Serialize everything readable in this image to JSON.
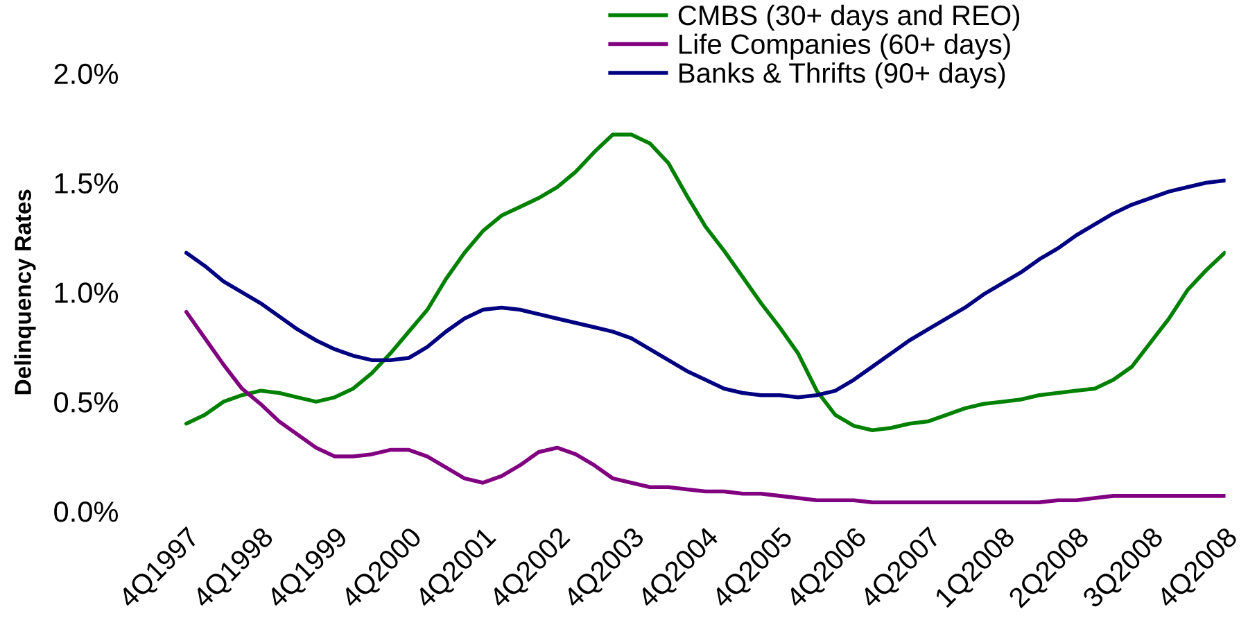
{
  "chart_data": {
    "type": "line",
    "ylabel": "Delinquency Rates",
    "categories": [
      "4Q1997",
      null,
      null,
      null,
      "4Q1998",
      null,
      null,
      null,
      "4Q1999",
      null,
      null,
      null,
      "4Q2000",
      null,
      null,
      null,
      "4Q2001",
      null,
      null,
      null,
      "4Q2002",
      null,
      null,
      null,
      "4Q2003",
      null,
      null,
      null,
      "4Q2004",
      null,
      null,
      null,
      "4Q2005",
      null,
      null,
      null,
      "4Q2006",
      null,
      null,
      null,
      "4Q2007",
      null,
      null,
      null,
      "1Q2008",
      null,
      null,
      null,
      "2Q2008",
      null,
      null,
      null,
      "3Q2008",
      null,
      null,
      null,
      "4Q2008"
    ],
    "series": [
      {
        "name": "CMBS (30+ days and REO)",
        "color": "#008000",
        "values": [
          0.4,
          0.44,
          0.5,
          0.53,
          0.55,
          0.54,
          0.52,
          0.5,
          0.52,
          0.56,
          0.63,
          0.72,
          0.82,
          0.92,
          1.06,
          1.18,
          1.28,
          1.35,
          1.39,
          1.43,
          1.48,
          1.55,
          1.64,
          1.72,
          1.72,
          1.68,
          1.59,
          1.44,
          1.3,
          1.19,
          1.07,
          0.95,
          0.84,
          0.72,
          0.55,
          0.44,
          0.39,
          0.37,
          0.38,
          0.4,
          0.41,
          0.44,
          0.47,
          0.49,
          0.5,
          0.51,
          0.53,
          0.54,
          0.55,
          0.56,
          0.6,
          0.66,
          0.77,
          0.88,
          1.01,
          1.1,
          1.18
        ]
      },
      {
        "name": "Life Companies (60+ days)",
        "color": "#800080",
        "values": [
          0.91,
          0.79,
          0.67,
          0.56,
          0.49,
          0.41,
          0.35,
          0.29,
          0.25,
          0.25,
          0.26,
          0.28,
          0.28,
          0.25,
          0.2,
          0.15,
          0.13,
          0.16,
          0.21,
          0.27,
          0.29,
          0.26,
          0.21,
          0.15,
          0.13,
          0.11,
          0.11,
          0.1,
          0.09,
          0.09,
          0.08,
          0.08,
          0.07,
          0.06,
          0.05,
          0.05,
          0.05,
          0.04,
          0.04,
          0.04,
          0.04,
          0.04,
          0.04,
          0.04,
          0.04,
          0.04,
          0.04,
          0.05,
          0.05,
          0.06,
          0.07,
          0.07,
          0.07,
          0.07,
          0.07,
          0.07,
          0.07
        ]
      },
      {
        "name": "Banks & Thrifts (90+ days)",
        "color": "#000080",
        "values": [
          1.18,
          1.12,
          1.05,
          1.0,
          0.95,
          0.89,
          0.83,
          0.78,
          0.74,
          0.71,
          0.69,
          0.69,
          0.7,
          0.75,
          0.82,
          0.88,
          0.92,
          0.93,
          0.92,
          0.9,
          0.88,
          0.86,
          0.84,
          0.82,
          0.79,
          0.74,
          0.69,
          0.64,
          0.6,
          0.56,
          0.54,
          0.53,
          0.53,
          0.52,
          0.53,
          0.55,
          0.6,
          0.66,
          0.72,
          0.78,
          0.83,
          0.88,
          0.93,
          0.99,
          1.04,
          1.09,
          1.15,
          1.2,
          1.26,
          1.31,
          1.36,
          1.4,
          1.43,
          1.46,
          1.48,
          1.5,
          1.51
        ]
      }
    ],
    "ylim": [
      0,
      2.0
    ],
    "yticks": [
      {
        "value": 0,
        "label": "0.0%"
      },
      {
        "value": 0.5,
        "label": "0.5%"
      },
      {
        "value": 1.0,
        "label": "1.0%"
      },
      {
        "value": 1.5,
        "label": "1.5%"
      },
      {
        "value": 2.0,
        "label": "2.0%"
      }
    ],
    "legend": "top",
    "grid": false,
    "line_style": "solid",
    "marker": "none"
  }
}
